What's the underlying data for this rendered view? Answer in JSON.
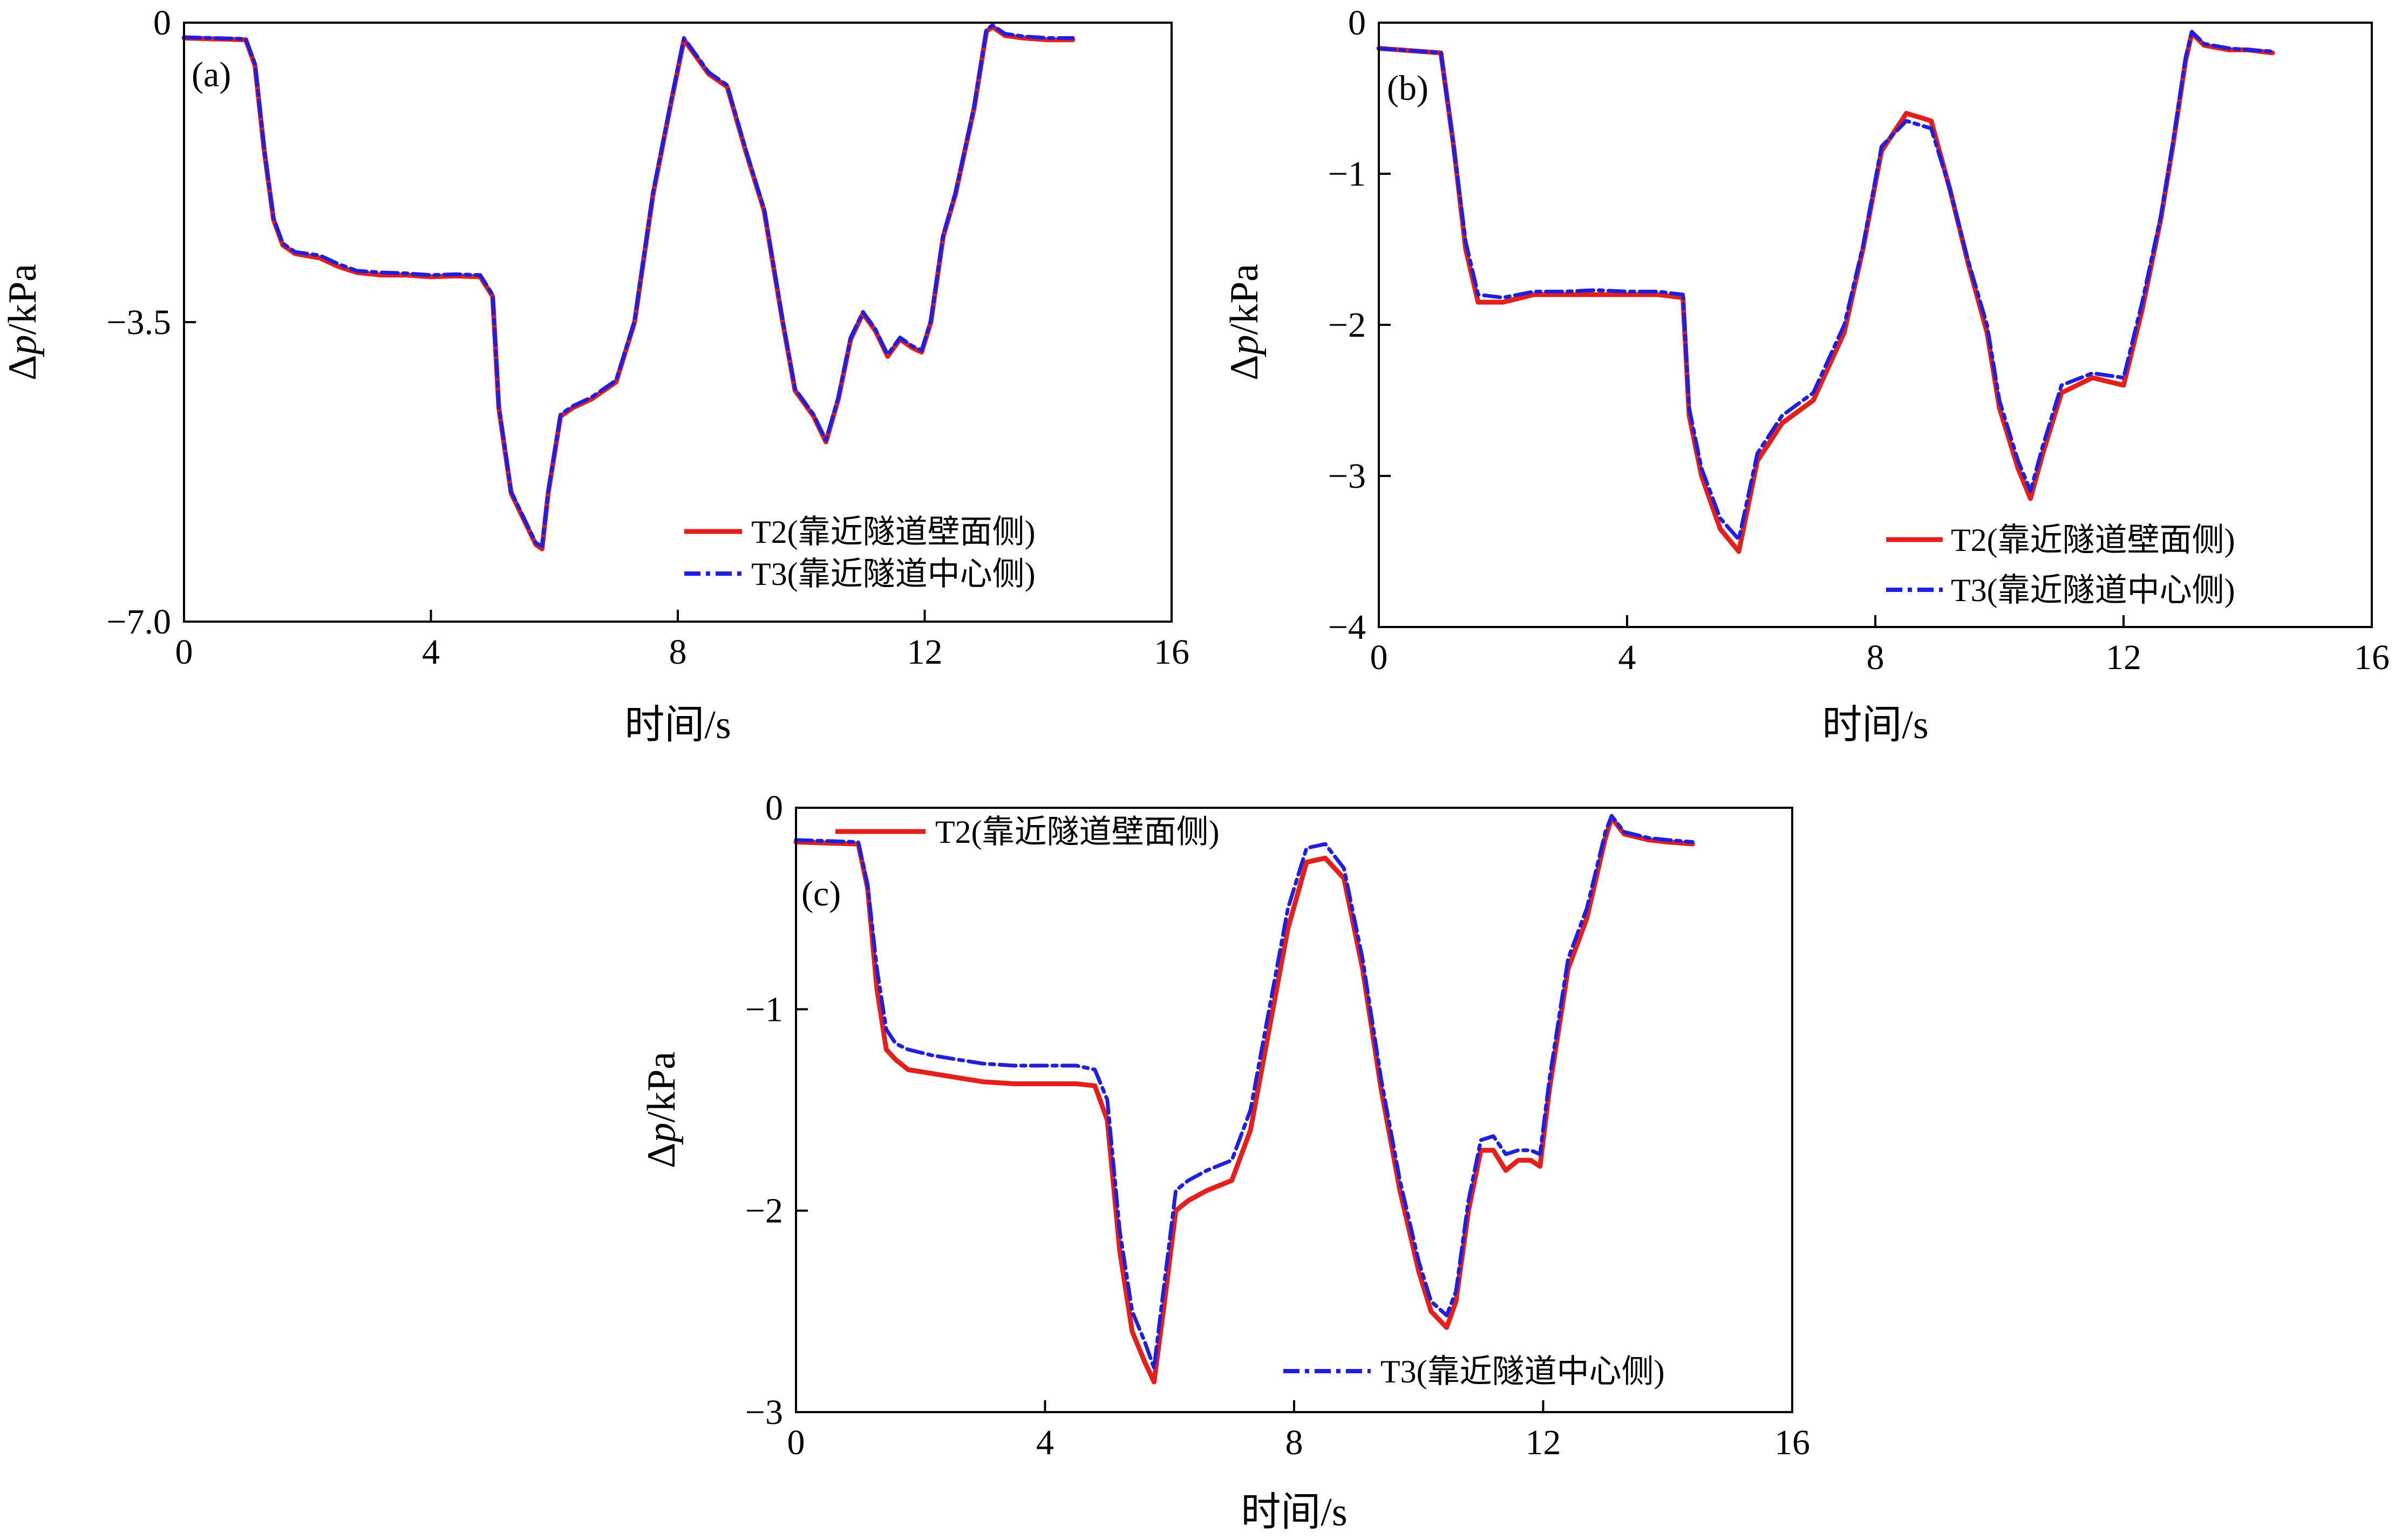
{
  "chart_data": [
    {
      "id": "a",
      "type": "line",
      "panel_label": "(a)",
      "xlabel": "时间/s",
      "ylabel_delta": "Δ",
      "ylabel_var": "p",
      "ylabel_unit": "/kPa",
      "xlim": [
        0,
        16
      ],
      "ylim": [
        -7.0,
        0
      ],
      "xticks": [
        0,
        4,
        8,
        12,
        16
      ],
      "xtick_labels": [
        "0",
        "4",
        "8",
        "12",
        "16"
      ],
      "yticks": [
        0,
        -3.5,
        -7.0
      ],
      "ytick_labels": [
        "0",
        "−3.5",
        "−7.0"
      ],
      "legend_position": "bottom-right",
      "series": [
        {
          "name": "T2(靠近隧道壁面侧)",
          "color": "#e3201b",
          "style": "solid",
          "x": [
            0,
            1.0,
            1.15,
            1.3,
            1.45,
            1.6,
            1.8,
            2.2,
            2.5,
            2.8,
            3.2,
            3.6,
            4.0,
            4.4,
            4.8,
            5.0,
            5.1,
            5.3,
            5.5,
            5.7,
            5.8,
            5.9,
            6.1,
            6.3,
            6.6,
            7.0,
            7.3,
            7.6,
            7.9,
            8.1,
            8.3,
            8.5,
            8.8,
            9.1,
            9.4,
            9.7,
            9.9,
            10.2,
            10.4,
            10.6,
            10.8,
            11.0,
            11.2,
            11.4,
            11.6,
            11.8,
            11.95,
            12.1,
            12.3,
            12.5,
            12.8,
            13.0,
            13.1,
            13.3,
            13.6,
            14.0,
            14.4
          ],
          "y": [
            -0.18,
            -0.2,
            -0.5,
            -1.5,
            -2.3,
            -2.6,
            -2.7,
            -2.75,
            -2.85,
            -2.92,
            -2.95,
            -2.95,
            -2.97,
            -2.96,
            -2.97,
            -3.2,
            -4.5,
            -5.5,
            -5.8,
            -6.1,
            -6.15,
            -5.5,
            -4.6,
            -4.5,
            -4.4,
            -4.2,
            -3.5,
            -2.0,
            -0.9,
            -0.2,
            -0.4,
            -0.6,
            -0.75,
            -1.5,
            -2.2,
            -3.5,
            -4.3,
            -4.6,
            -4.9,
            -4.4,
            -3.7,
            -3.4,
            -3.6,
            -3.9,
            -3.7,
            -3.8,
            -3.85,
            -3.5,
            -2.5,
            -2.0,
            -1.0,
            -0.1,
            -0.05,
            -0.15,
            -0.18,
            -0.2,
            -0.2
          ]
        },
        {
          "name": "T3(靠近隧道中心侧)",
          "color": "#1f1fdd",
          "style": "dash-dot",
          "x": [
            0,
            1.0,
            1.15,
            1.3,
            1.45,
            1.6,
            1.8,
            2.2,
            2.5,
            2.8,
            3.2,
            3.6,
            4.0,
            4.4,
            4.8,
            5.0,
            5.1,
            5.3,
            5.5,
            5.7,
            5.8,
            5.9,
            6.1,
            6.3,
            6.6,
            7.0,
            7.3,
            7.6,
            7.9,
            8.1,
            8.3,
            8.5,
            8.8,
            9.1,
            9.4,
            9.7,
            9.9,
            10.2,
            10.4,
            10.6,
            10.8,
            11.0,
            11.2,
            11.4,
            11.6,
            11.8,
            11.95,
            12.1,
            12.3,
            12.5,
            12.8,
            13.0,
            13.1,
            13.3,
            13.6,
            14.0,
            14.4
          ],
          "y": [
            -0.17,
            -0.19,
            -0.48,
            -1.48,
            -2.28,
            -2.58,
            -2.68,
            -2.72,
            -2.82,
            -2.9,
            -2.92,
            -2.93,
            -2.95,
            -2.94,
            -2.95,
            -3.18,
            -4.48,
            -5.48,
            -5.78,
            -6.08,
            -6.12,
            -5.48,
            -4.58,
            -4.48,
            -4.38,
            -4.18,
            -3.48,
            -1.98,
            -0.88,
            -0.18,
            -0.38,
            -0.58,
            -0.73,
            -1.48,
            -2.18,
            -3.48,
            -4.28,
            -4.58,
            -4.88,
            -4.38,
            -3.68,
            -3.38,
            -3.58,
            -3.88,
            -3.68,
            -3.78,
            -3.83,
            -3.48,
            -2.48,
            -1.98,
            -0.98,
            -0.08,
            -0.03,
            -0.13,
            -0.16,
            -0.18,
            -0.18
          ]
        }
      ]
    },
    {
      "id": "b",
      "type": "line",
      "panel_label": "(b)",
      "xlabel": "时间/s",
      "ylabel_delta": "Δ",
      "ylabel_var": "p",
      "ylabel_unit": "/kPa",
      "xlim": [
        0,
        16
      ],
      "ylim": [
        -4,
        0
      ],
      "xticks": [
        0,
        4,
        8,
        12,
        16
      ],
      "xtick_labels": [
        "0",
        "4",
        "8",
        "12",
        "16"
      ],
      "yticks": [
        0,
        -1,
        -2,
        -3,
        -4
      ],
      "ytick_labels": [
        "0",
        "−1",
        "−2",
        "−3",
        "−4"
      ],
      "legend_position": "bottom-right",
      "series": [
        {
          "name": "T2(靠近隧道壁面侧)",
          "color": "#e3201b",
          "style": "solid",
          "x": [
            0,
            1.0,
            1.2,
            1.4,
            1.6,
            2.0,
            2.5,
            3.0,
            3.5,
            4.0,
            4.5,
            4.9,
            5.0,
            5.2,
            5.5,
            5.8,
            6.1,
            6.5,
            7.0,
            7.5,
            7.8,
            8.1,
            8.5,
            8.9,
            9.2,
            9.5,
            9.8,
            10.0,
            10.3,
            10.5,
            10.7,
            11.0,
            11.5,
            12.0,
            12.3,
            12.6,
            12.8,
            13.0,
            13.1,
            13.3,
            13.7,
            14.0,
            14.4
          ],
          "y": [
            -0.17,
            -0.2,
            -0.8,
            -1.5,
            -1.85,
            -1.85,
            -1.8,
            -1.8,
            -1.8,
            -1.8,
            -1.8,
            -1.82,
            -2.6,
            -3.0,
            -3.35,
            -3.5,
            -2.9,
            -2.65,
            -2.5,
            -2.05,
            -1.5,
            -0.85,
            -0.6,
            -0.65,
            -1.1,
            -1.6,
            -2.05,
            -2.55,
            -2.95,
            -3.15,
            -2.85,
            -2.45,
            -2.35,
            -2.4,
            -1.9,
            -1.3,
            -0.8,
            -0.25,
            -0.07,
            -0.15,
            -0.18,
            -0.18,
            -0.2
          ]
        },
        {
          "name": "T3(靠近隧道中心侧)",
          "color": "#1f1fdd",
          "style": "dash-dot",
          "x": [
            0,
            1.0,
            1.2,
            1.4,
            1.6,
            2.0,
            2.5,
            3.0,
            3.5,
            4.0,
            4.5,
            4.9,
            5.0,
            5.2,
            5.5,
            5.8,
            6.1,
            6.5,
            7.0,
            7.5,
            7.8,
            8.1,
            8.5,
            8.9,
            9.2,
            9.5,
            9.8,
            10.0,
            10.3,
            10.5,
            10.7,
            11.0,
            11.5,
            12.0,
            12.3,
            12.6,
            12.8,
            13.0,
            13.1,
            13.3,
            13.7,
            14.0,
            14.4
          ],
          "y": [
            -0.17,
            -0.2,
            -0.8,
            -1.45,
            -1.8,
            -1.82,
            -1.78,
            -1.78,
            -1.77,
            -1.78,
            -1.78,
            -1.8,
            -2.55,
            -2.95,
            -3.28,
            -3.42,
            -2.85,
            -2.6,
            -2.45,
            -2.0,
            -1.48,
            -0.82,
            -0.65,
            -0.7,
            -1.1,
            -1.58,
            -2.0,
            -2.5,
            -2.9,
            -3.1,
            -2.8,
            -2.4,
            -2.32,
            -2.35,
            -1.85,
            -1.28,
            -0.78,
            -0.23,
            -0.06,
            -0.14,
            -0.17,
            -0.18,
            -0.19
          ]
        }
      ]
    },
    {
      "id": "c",
      "type": "line",
      "panel_label": "(c)",
      "xlabel": "时间/s",
      "ylabel_delta": "Δ",
      "ylabel_var": "p",
      "ylabel_unit": "/kPa",
      "xlim": [
        0,
        16
      ],
      "ylim": [
        -3,
        0
      ],
      "xticks": [
        0,
        4,
        8,
        12,
        16
      ],
      "xtick_labels": [
        "0",
        "4",
        "8",
        "12",
        "16"
      ],
      "yticks": [
        0,
        -1,
        -2,
        -3
      ],
      "ytick_labels": [
        "0",
        "−1",
        "−2",
        "−3"
      ],
      "legend_position_t2": "top-left",
      "legend_position_t3": "bottom-right",
      "series": [
        {
          "name": "T2(靠近隧道壁面侧)",
          "color": "#e3201b",
          "style": "solid",
          "x": [
            0,
            1.0,
            1.15,
            1.3,
            1.45,
            1.6,
            1.8,
            2.2,
            2.6,
            3.0,
            3.5,
            4.0,
            4.5,
            4.8,
            5.0,
            5.2,
            5.4,
            5.6,
            5.75,
            5.9,
            6.1,
            6.3,
            6.6,
            7.0,
            7.3,
            7.6,
            7.9,
            8.2,
            8.5,
            8.8,
            9.1,
            9.4,
            9.7,
            10.0,
            10.2,
            10.45,
            10.6,
            10.8,
            11.0,
            11.2,
            11.4,
            11.6,
            11.8,
            11.95,
            12.1,
            12.4,
            12.7,
            13.0,
            13.1,
            13.3,
            13.7,
            14.0,
            14.4
          ],
          "y": [
            -0.17,
            -0.18,
            -0.4,
            -0.9,
            -1.2,
            -1.25,
            -1.3,
            -1.32,
            -1.34,
            -1.36,
            -1.37,
            -1.37,
            -1.37,
            -1.38,
            -1.55,
            -2.2,
            -2.6,
            -2.75,
            -2.85,
            -2.5,
            -2.0,
            -1.95,
            -1.9,
            -1.85,
            -1.6,
            -1.1,
            -0.6,
            -0.27,
            -0.25,
            -0.35,
            -0.8,
            -1.4,
            -1.9,
            -2.3,
            -2.5,
            -2.58,
            -2.45,
            -2.0,
            -1.7,
            -1.7,
            -1.8,
            -1.75,
            -1.75,
            -1.78,
            -1.4,
            -0.8,
            -0.55,
            -0.15,
            -0.05,
            -0.13,
            -0.16,
            -0.17,
            -0.18
          ]
        },
        {
          "name": "T3(靠近隧道中心侧)",
          "color": "#1f1fdd",
          "style": "dash-dot",
          "x": [
            0,
            1.0,
            1.15,
            1.3,
            1.45,
            1.6,
            1.8,
            2.2,
            2.6,
            3.0,
            3.5,
            4.0,
            4.5,
            4.8,
            5.0,
            5.2,
            5.4,
            5.6,
            5.75,
            5.9,
            6.1,
            6.3,
            6.6,
            7.0,
            7.3,
            7.6,
            7.9,
            8.2,
            8.5,
            8.8,
            9.1,
            9.4,
            9.7,
            10.0,
            10.2,
            10.45,
            10.6,
            10.8,
            11.0,
            11.2,
            11.4,
            11.6,
            11.8,
            11.95,
            12.1,
            12.4,
            12.7,
            13.0,
            13.1,
            13.3,
            13.7,
            14.0,
            14.4
          ],
          "y": [
            -0.16,
            -0.17,
            -0.38,
            -0.8,
            -1.1,
            -1.17,
            -1.2,
            -1.23,
            -1.25,
            -1.27,
            -1.28,
            -1.28,
            -1.28,
            -1.3,
            -1.45,
            -2.1,
            -2.5,
            -2.65,
            -2.78,
            -2.4,
            -1.9,
            -1.85,
            -1.8,
            -1.75,
            -1.5,
            -1.0,
            -0.5,
            -0.2,
            -0.18,
            -0.3,
            -0.75,
            -1.35,
            -1.85,
            -2.25,
            -2.45,
            -2.52,
            -2.4,
            -1.95,
            -1.65,
            -1.63,
            -1.72,
            -1.7,
            -1.7,
            -1.72,
            -1.35,
            -0.75,
            -0.5,
            -0.12,
            -0.04,
            -0.12,
            -0.15,
            -0.16,
            -0.17
          ]
        }
      ]
    }
  ]
}
